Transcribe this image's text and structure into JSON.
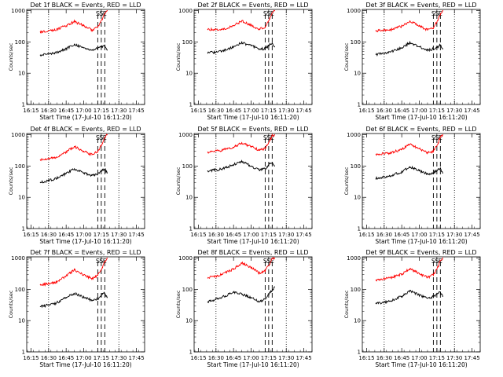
{
  "figure": {
    "background": "#ffffff",
    "event_color": "#000000",
    "lld_color": "#ff0000"
  },
  "panel_layout": {
    "ylabel": "Counts/sec",
    "xlabel": "Start Time (17-Jul-10 16:11:20)",
    "x_tick_labels": [
      "16:15",
      "16:30",
      "16:45",
      "17:00",
      "17:15",
      "17:30",
      "17:45"
    ],
    "y_tick_labels": [
      "1",
      "10",
      "100",
      "1000"
    ],
    "marker_labels": [
      "S",
      "S",
      "E"
    ]
  },
  "chart_data": [
    {
      "type": "line",
      "title": "Det 1f BLACK = Events, RED = LLD",
      "xlabel": "Start Time (17-Jul-10 16:11:20)",
      "ylabel": "Counts/sec",
      "y_scale": "log",
      "ylim": [
        1,
        1100
      ],
      "xlim": [
        "16:11:20",
        "17:52:00"
      ],
      "x": [
        "16:23",
        "16:35",
        "16:45",
        "16:52",
        "17:00",
        "17:07",
        "17:12",
        "17:16",
        "17:18",
        "17:20"
      ],
      "series": [
        {
          "name": "LLD",
          "color": "#ff0000",
          "values": [
            210,
            240,
            330,
            450,
            330,
            240,
            300,
            520,
            800,
            1000
          ]
        },
        {
          "name": "Events",
          "color": "#000000",
          "values": [
            38,
            45,
            60,
            85,
            65,
            55,
            65,
            70,
            78,
            55
          ]
        }
      ],
      "vertical_lines": {
        "dotted": [
          "16:30",
          "17:30"
        ],
        "dashed": [
          "17:12",
          "17:15",
          "17:18"
        ]
      }
    },
    {
      "type": "line",
      "title": "Det 2f BLACK = Events, RED = LLD",
      "xlabel": "Start Time (17-Jul-10 16:11:20)",
      "ylabel": "Counts/sec",
      "y_scale": "log",
      "ylim": [
        1,
        1100
      ],
      "xlim": [
        "16:11:20",
        "17:52:00"
      ],
      "x": [
        "16:23",
        "16:35",
        "16:45",
        "16:52",
        "17:00",
        "17:07",
        "17:12",
        "17:16",
        "17:18",
        "17:20"
      ],
      "series": [
        {
          "name": "LLD",
          "color": "#ff0000",
          "values": [
            250,
            250,
            330,
            470,
            340,
            260,
            290,
            550,
            850,
            1000
          ]
        },
        {
          "name": "Events",
          "color": "#000000",
          "values": [
            45,
            50,
            70,
            95,
            75,
            60,
            60,
            85,
            90,
            70
          ]
        }
      ],
      "vertical_lines": {
        "dotted": [
          "16:30",
          "17:30"
        ],
        "dashed": [
          "17:12",
          "17:15",
          "17:18"
        ]
      }
    },
    {
      "type": "line",
      "title": "Det 3f BLACK = Events, RED = LLD",
      "xlabel": "Start Time (17-Jul-10 16:11:20)",
      "ylabel": "Counts/sec",
      "y_scale": "log",
      "ylim": [
        1,
        1100
      ],
      "xlim": [
        "16:11:20",
        "17:52:00"
      ],
      "x": [
        "16:23",
        "16:35",
        "16:45",
        "16:52",
        "17:00",
        "17:07",
        "17:12",
        "17:16",
        "17:18",
        "17:20"
      ],
      "series": [
        {
          "name": "LLD",
          "color": "#ff0000",
          "values": [
            230,
            240,
            320,
            470,
            330,
            240,
            290,
            500,
            800,
            1000
          ]
        },
        {
          "name": "Events",
          "color": "#000000",
          "values": [
            40,
            48,
            65,
            95,
            70,
            55,
            60,
            70,
            80,
            60
          ]
        }
      ],
      "vertical_lines": {
        "dotted": [
          "16:30",
          "17:30"
        ],
        "dashed": [
          "17:12",
          "17:15",
          "17:18"
        ]
      }
    },
    {
      "type": "line",
      "title": "Det 4f BLACK = Events, RED = LLD",
      "xlabel": "Start Time (17-Jul-10 16:11:20)",
      "ylabel": "Counts/sec",
      "y_scale": "log",
      "ylim": [
        1,
        1100
      ],
      "xlim": [
        "16:11:20",
        "17:52:00"
      ],
      "x": [
        "16:23",
        "16:35",
        "16:45",
        "16:52",
        "17:00",
        "17:07",
        "17:12",
        "17:16",
        "17:18",
        "17:20"
      ],
      "series": [
        {
          "name": "LLD",
          "color": "#ff0000",
          "values": [
            160,
            180,
            280,
            420,
            300,
            230,
            290,
            520,
            820,
            1000
          ]
        },
        {
          "name": "Events",
          "color": "#000000",
          "values": [
            30,
            38,
            58,
            80,
            60,
            50,
            55,
            75,
            80,
            60
          ]
        }
      ],
      "vertical_lines": {
        "dotted": [
          "16:30",
          "17:30"
        ],
        "dashed": [
          "17:12",
          "17:15",
          "17:18"
        ]
      }
    },
    {
      "type": "line",
      "title": "Det 5f BLACK = Events, RED = LLD",
      "xlabel": "Start Time (17-Jul-10 16:11:20)",
      "ylabel": "Counts/sec",
      "y_scale": "log",
      "ylim": [
        1,
        1100
      ],
      "xlim": [
        "16:11:20",
        "17:52:00"
      ],
      "x": [
        "16:23",
        "16:35",
        "16:45",
        "16:52",
        "17:00",
        "17:07",
        "17:12",
        "17:16",
        "17:18",
        "17:20"
      ],
      "series": [
        {
          "name": "LLD",
          "color": "#ff0000",
          "values": [
            280,
            320,
            400,
            550,
            420,
            320,
            370,
            650,
            950,
            1000
          ]
        },
        {
          "name": "Events",
          "color": "#000000",
          "values": [
            70,
            80,
            110,
            140,
            100,
            75,
            80,
            120,
            130,
            100
          ]
        }
      ],
      "vertical_lines": {
        "dotted": [
          "16:30",
          "17:30"
        ],
        "dashed": [
          "17:12",
          "17:15",
          "17:18"
        ]
      }
    },
    {
      "type": "line",
      "title": "Det 6f BLACK = Events, RED = LLD",
      "xlabel": "Start Time (17-Jul-10 16:11:20)",
      "ylabel": "Counts/sec",
      "y_scale": "log",
      "ylim": [
        1,
        1100
      ],
      "xlim": [
        "16:11:20",
        "17:52:00"
      ],
      "x": [
        "16:23",
        "16:35",
        "16:45",
        "16:52",
        "17:00",
        "17:07",
        "17:12",
        "17:16",
        "17:18",
        "17:20"
      ],
      "series": [
        {
          "name": "LLD",
          "color": "#ff0000",
          "values": [
            240,
            260,
            340,
            500,
            360,
            260,
            300,
            550,
            850,
            1000
          ]
        },
        {
          "name": "Events",
          "color": "#000000",
          "values": [
            40,
            48,
            65,
            95,
            70,
            55,
            60,
            80,
            85,
            60
          ]
        }
      ],
      "vertical_lines": {
        "dotted": [
          "16:30",
          "17:30"
        ],
        "dashed": [
          "17:12",
          "17:15",
          "17:18"
        ]
      }
    },
    {
      "type": "line",
      "title": "Det 7f BLACK = Events, RED = LLD",
      "xlabel": "Start Time (17-Jul-10 16:11:20)",
      "ylabel": "Counts/sec",
      "y_scale": "log",
      "ylim": [
        1,
        1100
      ],
      "xlim": [
        "16:11:20",
        "17:52:00"
      ],
      "x": [
        "16:23",
        "16:35",
        "16:45",
        "16:52",
        "17:00",
        "17:07",
        "17:12",
        "17:16",
        "17:18",
        "17:20"
      ],
      "series": [
        {
          "name": "LLD",
          "color": "#ff0000",
          "values": [
            140,
            160,
            270,
            420,
            290,
            220,
            280,
            500,
            800,
            1000
          ]
        },
        {
          "name": "Events",
          "color": "#000000",
          "values": [
            28,
            34,
            55,
            75,
            55,
            45,
            50,
            70,
            75,
            55
          ]
        }
      ],
      "vertical_lines": {
        "dotted": [
          "16:30",
          "17:30"
        ],
        "dashed": [
          "17:12",
          "17:15",
          "17:18"
        ]
      }
    },
    {
      "type": "line",
      "title": "Det 8f BLACK = Events, RED = LLD",
      "xlabel": "Start Time (17-Jul-10 16:11:20)",
      "ylabel": "Counts/sec",
      "y_scale": "log",
      "ylim": [
        1,
        1100
      ],
      "xlim": [
        "16:11:20",
        "17:52:00"
      ],
      "x": [
        "16:23",
        "16:35",
        "16:45",
        "16:52",
        "17:00",
        "17:07",
        "17:12",
        "17:16",
        "17:18",
        "17:20"
      ],
      "series": [
        {
          "name": "LLD",
          "color": "#ff0000",
          "values": [
            230,
            300,
            450,
            700,
            500,
            330,
            400,
            650,
            950,
            1000
          ]
        },
        {
          "name": "Events",
          "color": "#000000",
          "values": [
            40,
            55,
            80,
            70,
            55,
            40,
            50,
            80,
            90,
            120
          ]
        }
      ],
      "vertical_lines": {
        "dotted": [
          "16:30",
          "17:30"
        ],
        "dashed": [
          "17:12",
          "17:15",
          "17:18"
        ]
      }
    },
    {
      "type": "line",
      "title": "Det 9f BLACK = Events, RED = LLD",
      "xlabel": "Start Time (17-Jul-10 16:11:20)",
      "ylabel": "Counts/sec",
      "y_scale": "log",
      "ylim": [
        1,
        1100
      ],
      "xlim": [
        "16:11:20",
        "17:52:00"
      ],
      "x": [
        "16:23",
        "16:35",
        "16:45",
        "16:52",
        "17:00",
        "17:07",
        "17:12",
        "17:16",
        "17:18",
        "17:20"
      ],
      "series": [
        {
          "name": "LLD",
          "color": "#ff0000",
          "values": [
            200,
            230,
            310,
            460,
            320,
            240,
            290,
            520,
            820,
            1000
          ]
        },
        {
          "name": "Events",
          "color": "#000000",
          "values": [
            35,
            42,
            60,
            90,
            65,
            52,
            58,
            75,
            80,
            60
          ]
        }
      ],
      "vertical_lines": {
        "dotted": [
          "16:30",
          "17:30"
        ],
        "dashed": [
          "17:12",
          "17:15",
          "17:18"
        ]
      }
    }
  ]
}
